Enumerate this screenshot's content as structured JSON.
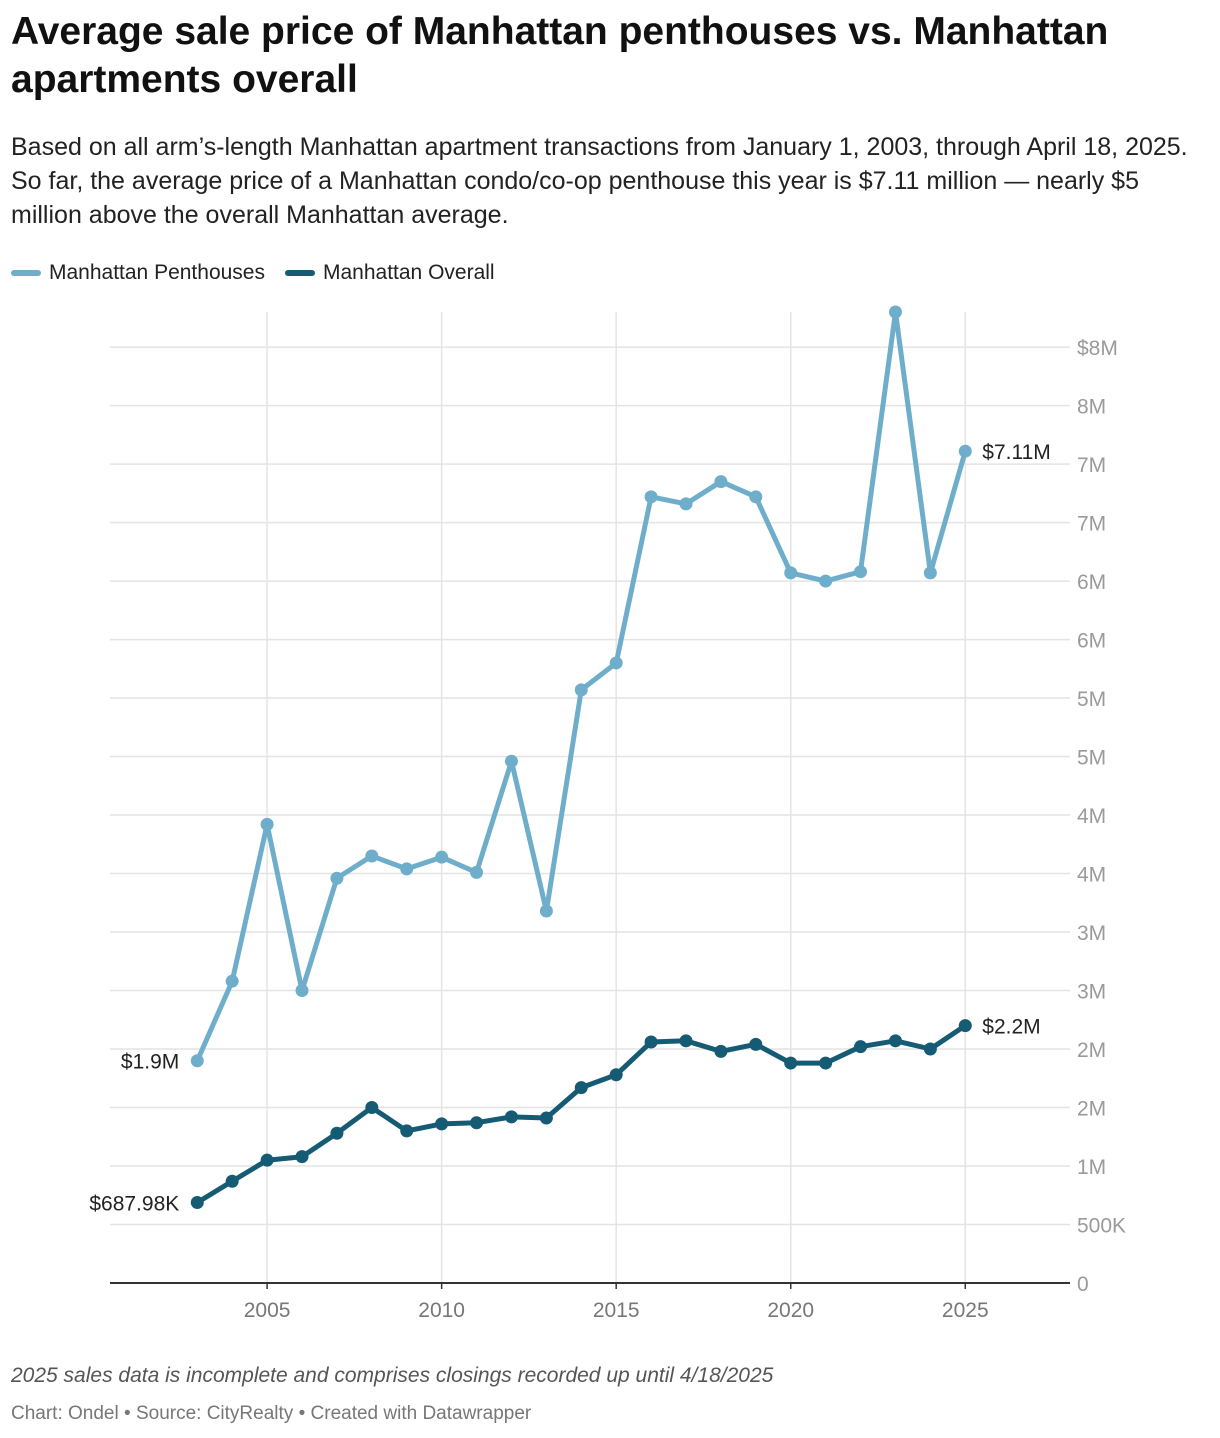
{
  "title": "Average sale price of Manhattan penthouses vs. Manhattan apartments overall",
  "subtitle": "Based on all arm’s-length Manhattan apartment transactions from January 1, 2003, through April 18, 2025. So far, the average price of a Manhattan condo/co-op penthouse this year is $7.11 million — nearly $5 million above the overall Manhattan average.",
  "legend": [
    {
      "label": "Manhattan Penthouses",
      "color": "#6faecb"
    },
    {
      "label": "Manhattan Overall",
      "color": "#165b74"
    }
  ],
  "note": "2025 sales data is incomplete and comprises closings recorded up until 4/18/2025",
  "credit": {
    "chart": "Chart: Ondel",
    "source": "Source: CityRealty",
    "created": "Created with Datawrapper",
    "separator": " • "
  },
  "chart_data": {
    "type": "line",
    "title": "Average sale price of Manhattan penthouses vs. Manhattan apartments overall",
    "xlabel": "",
    "ylabel": "",
    "x": [
      2003,
      2004,
      2005,
      2006,
      2007,
      2008,
      2009,
      2010,
      2011,
      2012,
      2013,
      2014,
      2015,
      2016,
      2017,
      2018,
      2019,
      2020,
      2021,
      2022,
      2023,
      2024,
      2025
    ],
    "xlim": [
      2000.5,
      2028.0
    ],
    "ylim": [
      0,
      8300000
    ],
    "x_ticks": [
      2005,
      2010,
      2015,
      2020,
      2025
    ],
    "x_tick_labels": [
      "2005",
      "2010",
      "2015",
      "2020",
      "2025"
    ],
    "y_ticks": [
      0,
      500000,
      1000000,
      1500000,
      2000000,
      2500000,
      3000000,
      3500000,
      4000000,
      4500000,
      5000000,
      5500000,
      6000000,
      6500000,
      7000000,
      7500000,
      8000000
    ],
    "y_tick_labels": [
      "0",
      "500K",
      "1M",
      "2M",
      "2M",
      "3M",
      "3M",
      "4M",
      "4M",
      "5M",
      "5M",
      "6M",
      "6M",
      "7M",
      "7M",
      "8M",
      "$8M"
    ],
    "grid": true,
    "legend_position": "top-left",
    "series": [
      {
        "name": "Manhattan Penthouses",
        "color": "#6faecb",
        "values": [
          1900000,
          2580000,
          3920000,
          2500000,
          3460000,
          3650000,
          3540000,
          3640000,
          3510000,
          4460000,
          3180000,
          5070000,
          5300000,
          6720000,
          6660000,
          6850000,
          6720000,
          6070000,
          6000000,
          6080000,
          8300000,
          6070000,
          7110000
        ],
        "start_label": "$1.9M",
        "end_label": "$7.11M"
      },
      {
        "name": "Manhattan Overall",
        "color": "#165b74",
        "values": [
          687980,
          870000,
          1050000,
          1080000,
          1280000,
          1500000,
          1300000,
          1360000,
          1370000,
          1420000,
          1410000,
          1670000,
          1780000,
          2060000,
          2070000,
          1980000,
          2040000,
          1880000,
          1880000,
          2020000,
          2070000,
          2000000,
          2200000
        ],
        "start_label": "$687.98K",
        "end_label": "$2.2M"
      }
    ]
  }
}
